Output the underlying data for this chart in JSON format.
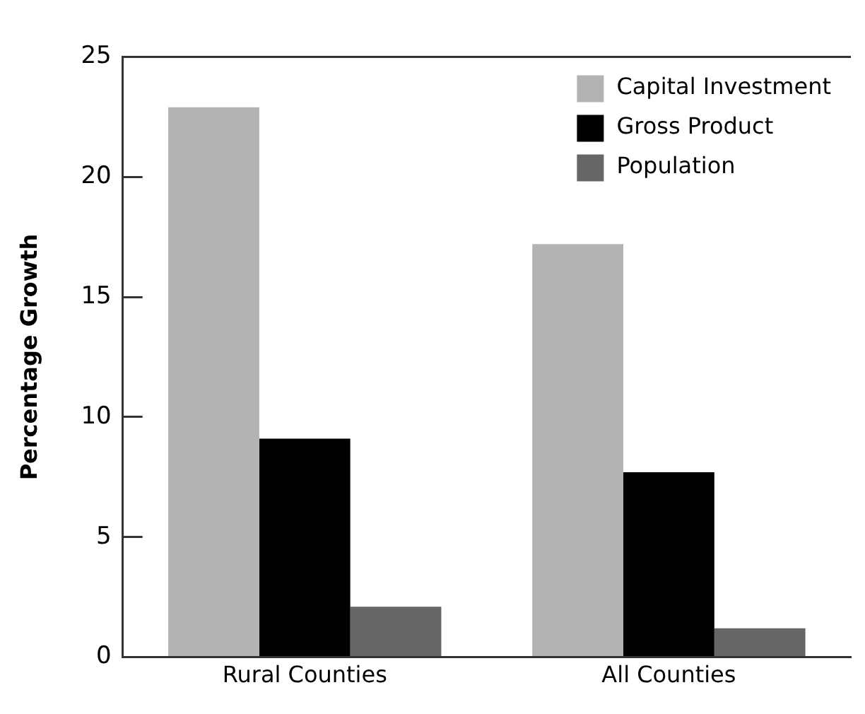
{
  "chart_data": {
    "type": "bar",
    "ylabel": "Percentage Growth",
    "categories": [
      "Rural Counties",
      "All Counties"
    ],
    "series": [
      {
        "name": "Capital Investment",
        "color": "#b3b3b3",
        "values": [
          22.9,
          17.2
        ]
      },
      {
        "name": "Gross Product",
        "color": "#000000",
        "values": [
          9.1,
          7.7
        ]
      },
      {
        "name": "Population",
        "color": "#666666",
        "values": [
          2.1,
          1.2
        ]
      }
    ],
    "ylim": [
      0,
      25
    ],
    "yticks": [
      0,
      5,
      10,
      15,
      20,
      25
    ],
    "grid": false,
    "legend": "top right"
  }
}
